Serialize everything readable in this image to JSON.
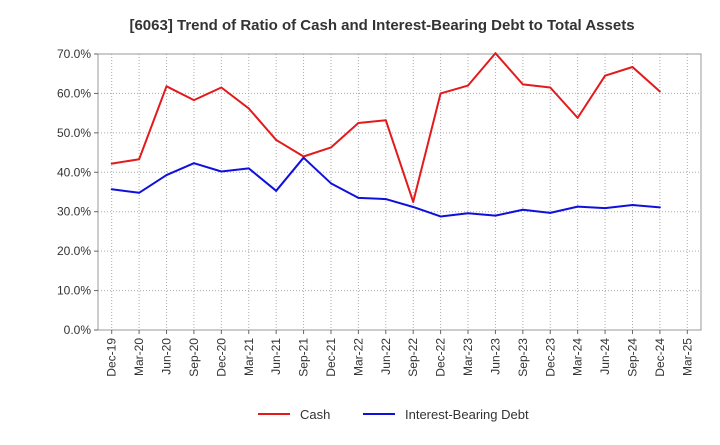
{
  "chart_data": {
    "type": "line",
    "title": "[6063]  Trend of Ratio of Cash and Interest-Bearing Debt to Total Assets",
    "xlabel": "",
    "ylabel": "",
    "ylim": [
      0,
      70
    ],
    "y_ticks": [
      "0.0%",
      "10.0%",
      "20.0%",
      "30.0%",
      "40.0%",
      "50.0%",
      "60.0%",
      "70.0%"
    ],
    "y_tick_values": [
      0,
      10,
      20,
      30,
      40,
      50,
      60,
      70
    ],
    "x_tick_labels": [
      "Dec-19",
      "Mar-20",
      "Jun-20",
      "Sep-20",
      "Dec-20",
      "Mar-21",
      "Jun-21",
      "Sep-21",
      "Dec-21",
      "Mar-22",
      "Jun-22",
      "Sep-22",
      "Dec-22",
      "Mar-23",
      "Jun-23",
      "Sep-23",
      "Dec-23",
      "Mar-24",
      "Jun-24",
      "Sep-24",
      "Dec-24",
      "Mar-25"
    ],
    "categories": [
      "Dec-19",
      "Mar-20",
      "Jun-20",
      "Sep-20",
      "Dec-20",
      "Mar-21",
      "Jun-21",
      "Sep-21",
      "Dec-21",
      "Mar-22",
      "Jun-22",
      "Sep-22",
      "Dec-22",
      "Mar-23",
      "Jun-23",
      "Sep-23",
      "Dec-23",
      "Mar-24",
      "Jun-24",
      "Sep-24",
      "Dec-24"
    ],
    "series": [
      {
        "name": "Cash",
        "color": "#e31a1c",
        "values": [
          42.2,
          43.3,
          61.8,
          58.3,
          61.5,
          56.2,
          48.2,
          44.0,
          46.3,
          52.5,
          53.2,
          32.5,
          60.0,
          62.0,
          70.2,
          62.3,
          61.5,
          53.8,
          64.5,
          66.7,
          60.5
        ]
      },
      {
        "name": "Interest-Bearing Debt",
        "color": "#1010dd",
        "values": [
          35.7,
          34.8,
          39.3,
          42.3,
          40.2,
          41.0,
          35.3,
          43.7,
          37.2,
          33.5,
          33.2,
          31.2,
          28.8,
          29.6,
          29.0,
          30.5,
          29.7,
          31.3,
          30.9,
          31.7,
          31.1
        ]
      }
    ],
    "grid": true,
    "grid_style": "dotted",
    "legend_position": "bottom-center"
  }
}
